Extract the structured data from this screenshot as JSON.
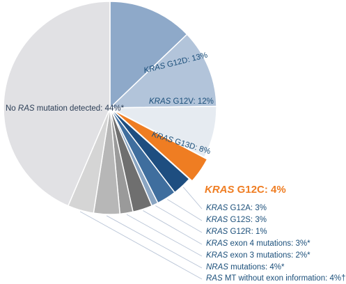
{
  "colors": {
    "no_ras": "#e1e1e4",
    "g12d": "#8ea9c9",
    "g12v": "#b2c4da",
    "g13d": "#e6ebf1",
    "g12c": "#ef7d22",
    "g12a": "#1e4e80",
    "g12s": "#3f6e9e",
    "g12r": "#8aa5c2",
    "exon4": "#6f6f6f",
    "exon3": "#9a9a9a",
    "nras": "#b7b7b7",
    "ras_mt": "#d5d5d5",
    "label_blue": "#1b4f7a",
    "label_orange": "#ef7d22",
    "leader_line": "#b8c4d6"
  },
  "chart_data": {
    "type": "pie",
    "title": "",
    "slices": [
      {
        "key": "g12d",
        "gene": "KRAS",
        "rest": " G12D: 13%",
        "value": 13
      },
      {
        "key": "g12v",
        "gene": "KRAS",
        "rest": " G12V: 12%",
        "value": 12
      },
      {
        "key": "g13d",
        "gene": "KRAS",
        "rest": " G13D: 8%",
        "value": 8
      },
      {
        "key": "g12c",
        "gene": "KRAS",
        "rest": " G12C: 4%",
        "value": 4
      },
      {
        "key": "g12a",
        "gene": "KRAS",
        "rest": " G12A: 3%",
        "value": 3
      },
      {
        "key": "g12s",
        "gene": "KRAS",
        "rest": " G12S: 3%",
        "value": 3
      },
      {
        "key": "g12r",
        "gene": "KRAS",
        "rest": " G12R: 1%",
        "value": 1
      },
      {
        "key": "exon4",
        "gene": "KRAS",
        "rest": " exon 4 mutations: 3%*",
        "value": 3
      },
      {
        "key": "exon3",
        "gene": "KRAS",
        "rest": " exon 3 mutations: 2%*",
        "value": 2
      },
      {
        "key": "nras",
        "gene": "NRAS",
        "rest": " mutations: 4%*",
        "value": 4
      },
      {
        "key": "ras_mt",
        "gene": "RAS",
        "rest": " MT without exon information: 4%†",
        "value": 4
      },
      {
        "key": "no_ras",
        "prefix": "No ",
        "gene": "RAS",
        "rest": " mutation detected: 44%*",
        "value": 44
      }
    ]
  }
}
